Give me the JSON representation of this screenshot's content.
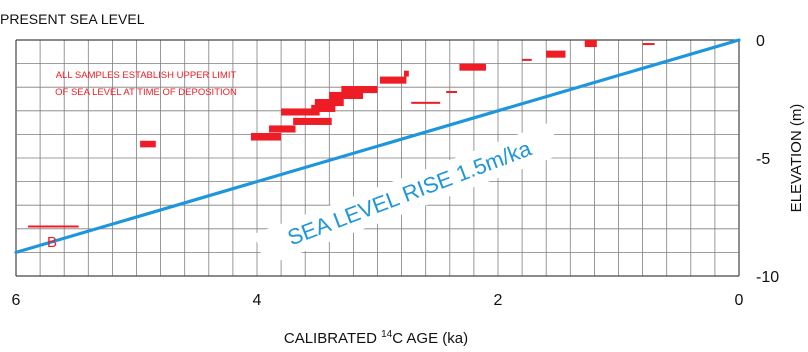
{
  "chart_data": {
    "type": "scatter",
    "title": "PRESENT SEA LEVEL",
    "xlabel_pre": "CALIBRATED ",
    "xlabel_sup": "14",
    "xlabel_post": "C AGE (ka)",
    "ylabel": "ELEVATION (m)",
    "xlim": [
      6,
      0
    ],
    "ylim": [
      -10,
      0
    ],
    "x_ticks": [
      6,
      4,
      2,
      0
    ],
    "y_ticks": [
      0,
      -5,
      -10
    ],
    "grid": true,
    "annotation_lines": [
      "ALL SAMPLES  ESTABLISH UPPER LIMIT",
      "OF SEA LEVEL AT TIME OF DEPOSITION"
    ],
    "trend_label": "SEA LEVEL RISE  1.5m/ka",
    "trend_line": {
      "x": [
        6,
        0
      ],
      "y": [
        -9,
        0
      ]
    },
    "point_label": "B",
    "samples": [
      {
        "x0": 5.9,
        "x1": 5.48,
        "y0": -7.86,
        "y1": -7.94
      },
      {
        "x0": 4.97,
        "x1": 4.84,
        "y0": -4.27,
        "y1": -4.55
      },
      {
        "x0": 4.05,
        "x1": 3.8,
        "y0": -3.94,
        "y1": -4.26
      },
      {
        "x0": 3.9,
        "x1": 3.68,
        "y0": -3.62,
        "y1": -3.92
      },
      {
        "x0": 3.8,
        "x1": 3.48,
        "y0": -2.9,
        "y1": -3.2
      },
      {
        "x0": 3.7,
        "x1": 3.38,
        "y0": -3.3,
        "y1": -3.6
      },
      {
        "x0": 3.52,
        "x1": 3.28,
        "y0": -2.5,
        "y1": -2.8
      },
      {
        "x0": 3.4,
        "x1": 3.12,
        "y0": -2.2,
        "y1": -2.5
      },
      {
        "x0": 3.55,
        "x1": 3.35,
        "y0": -2.75,
        "y1": -3.05
      },
      {
        "x0": 3.3,
        "x1": 3.0,
        "y0": -1.95,
        "y1": -2.25
      },
      {
        "x0": 2.98,
        "x1": 2.76,
        "y0": -1.55,
        "y1": -1.85
      },
      {
        "x0": 2.78,
        "x1": 2.74,
        "y0": -1.3,
        "y1": -1.55
      },
      {
        "x0": 2.72,
        "x1": 2.48,
        "y0": -2.62,
        "y1": -2.7
      },
      {
        "x0": 2.43,
        "x1": 2.34,
        "y0": -2.16,
        "y1": -2.22
      },
      {
        "x0": 2.32,
        "x1": 2.1,
        "y0": -1.0,
        "y1": -1.3
      },
      {
        "x0": 1.8,
        "x1": 1.72,
        "y0": -0.8,
        "y1": -0.86
      },
      {
        "x0": 1.6,
        "x1": 1.44,
        "y0": -0.45,
        "y1": -0.75
      },
      {
        "x0": 1.28,
        "x1": 1.18,
        "y0": 0.0,
        "y1": -0.3
      },
      {
        "x0": 0.8,
        "x1": 0.7,
        "y0": -0.13,
        "y1": -0.19
      }
    ],
    "colors": {
      "samples": "#ee1c25",
      "trend": "#1e96dd",
      "grid": "#7f7f7f"
    }
  }
}
